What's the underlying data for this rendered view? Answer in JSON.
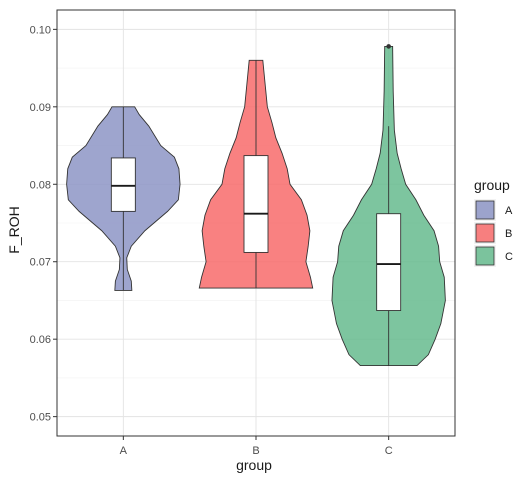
{
  "chart_data": {
    "type": "violin",
    "title": "",
    "xlabel": "group",
    "ylabel": "F_ROH",
    "ylim": [
      0.0475,
      0.1025
    ],
    "yticks": [
      "0.05",
      "0.06",
      "0.07",
      "0.08",
      "0.09",
      "0.10"
    ],
    "ytick_values": [
      0.05,
      0.06,
      0.07,
      0.08,
      0.09,
      0.1
    ],
    "categories": [
      "A",
      "B",
      "C"
    ],
    "grid": true,
    "legend": {
      "title": "group",
      "placement": "right",
      "entries": [
        "A",
        "B",
        "C"
      ]
    },
    "series": [
      {
        "name": "A",
        "color": "#8d95c5",
        "violin_min": 0.0663,
        "violin_max": 0.09,
        "density": [
          [
            0.0663,
            0.15
          ],
          [
            0.0675,
            0.14
          ],
          [
            0.069,
            0.07
          ],
          [
            0.0705,
            0.06
          ],
          [
            0.072,
            0.14
          ],
          [
            0.074,
            0.38
          ],
          [
            0.0765,
            0.78
          ],
          [
            0.078,
            0.97
          ],
          [
            0.08,
            1.0
          ],
          [
            0.082,
            0.98
          ],
          [
            0.0835,
            0.9
          ],
          [
            0.085,
            0.66
          ],
          [
            0.0875,
            0.45
          ],
          [
            0.089,
            0.28
          ],
          [
            0.09,
            0.2
          ]
        ],
        "box": {
          "q1": 0.0765,
          "median": 0.0798,
          "q3": 0.0834,
          "whisker_low": 0.0663,
          "whisker_high": 0.09
        },
        "outliers": []
      },
      {
        "name": "B",
        "color": "#f86b6b",
        "violin_min": 0.0666,
        "violin_max": 0.096,
        "density": [
          [
            0.0666,
            1.0
          ],
          [
            0.068,
            0.96
          ],
          [
            0.07,
            0.88
          ],
          [
            0.072,
            0.92
          ],
          [
            0.074,
            0.95
          ],
          [
            0.076,
            0.9
          ],
          [
            0.078,
            0.8
          ],
          [
            0.08,
            0.6
          ],
          [
            0.082,
            0.55
          ],
          [
            0.084,
            0.46
          ],
          [
            0.086,
            0.35
          ],
          [
            0.088,
            0.28
          ],
          [
            0.09,
            0.2
          ],
          [
            0.093,
            0.16
          ],
          [
            0.096,
            0.12
          ]
        ],
        "box": {
          "q1": 0.0712,
          "median": 0.0762,
          "q3": 0.0837,
          "whisker_low": 0.0666,
          "whisker_high": 0.096
        },
        "outliers": []
      },
      {
        "name": "C",
        "color": "#66bb8e",
        "violin_min": 0.0566,
        "violin_max": 0.0978,
        "density": [
          [
            0.0566,
            0.5
          ],
          [
            0.058,
            0.7
          ],
          [
            0.06,
            0.82
          ],
          [
            0.062,
            0.92
          ],
          [
            0.065,
            1.0
          ],
          [
            0.068,
            0.98
          ],
          [
            0.07,
            0.9
          ],
          [
            0.072,
            0.88
          ],
          [
            0.074,
            0.8
          ],
          [
            0.076,
            0.62
          ],
          [
            0.078,
            0.48
          ],
          [
            0.08,
            0.3
          ],
          [
            0.082,
            0.22
          ],
          [
            0.084,
            0.15
          ],
          [
            0.087,
            0.1
          ],
          [
            0.092,
            0.08
          ],
          [
            0.0978,
            0.07
          ]
        ],
        "box": {
          "q1": 0.0637,
          "median": 0.0697,
          "q3": 0.0762,
          "whisker_low": 0.0566,
          "whisker_high": 0.0875
        },
        "outliers": [
          0.0978
        ]
      }
    ]
  }
}
